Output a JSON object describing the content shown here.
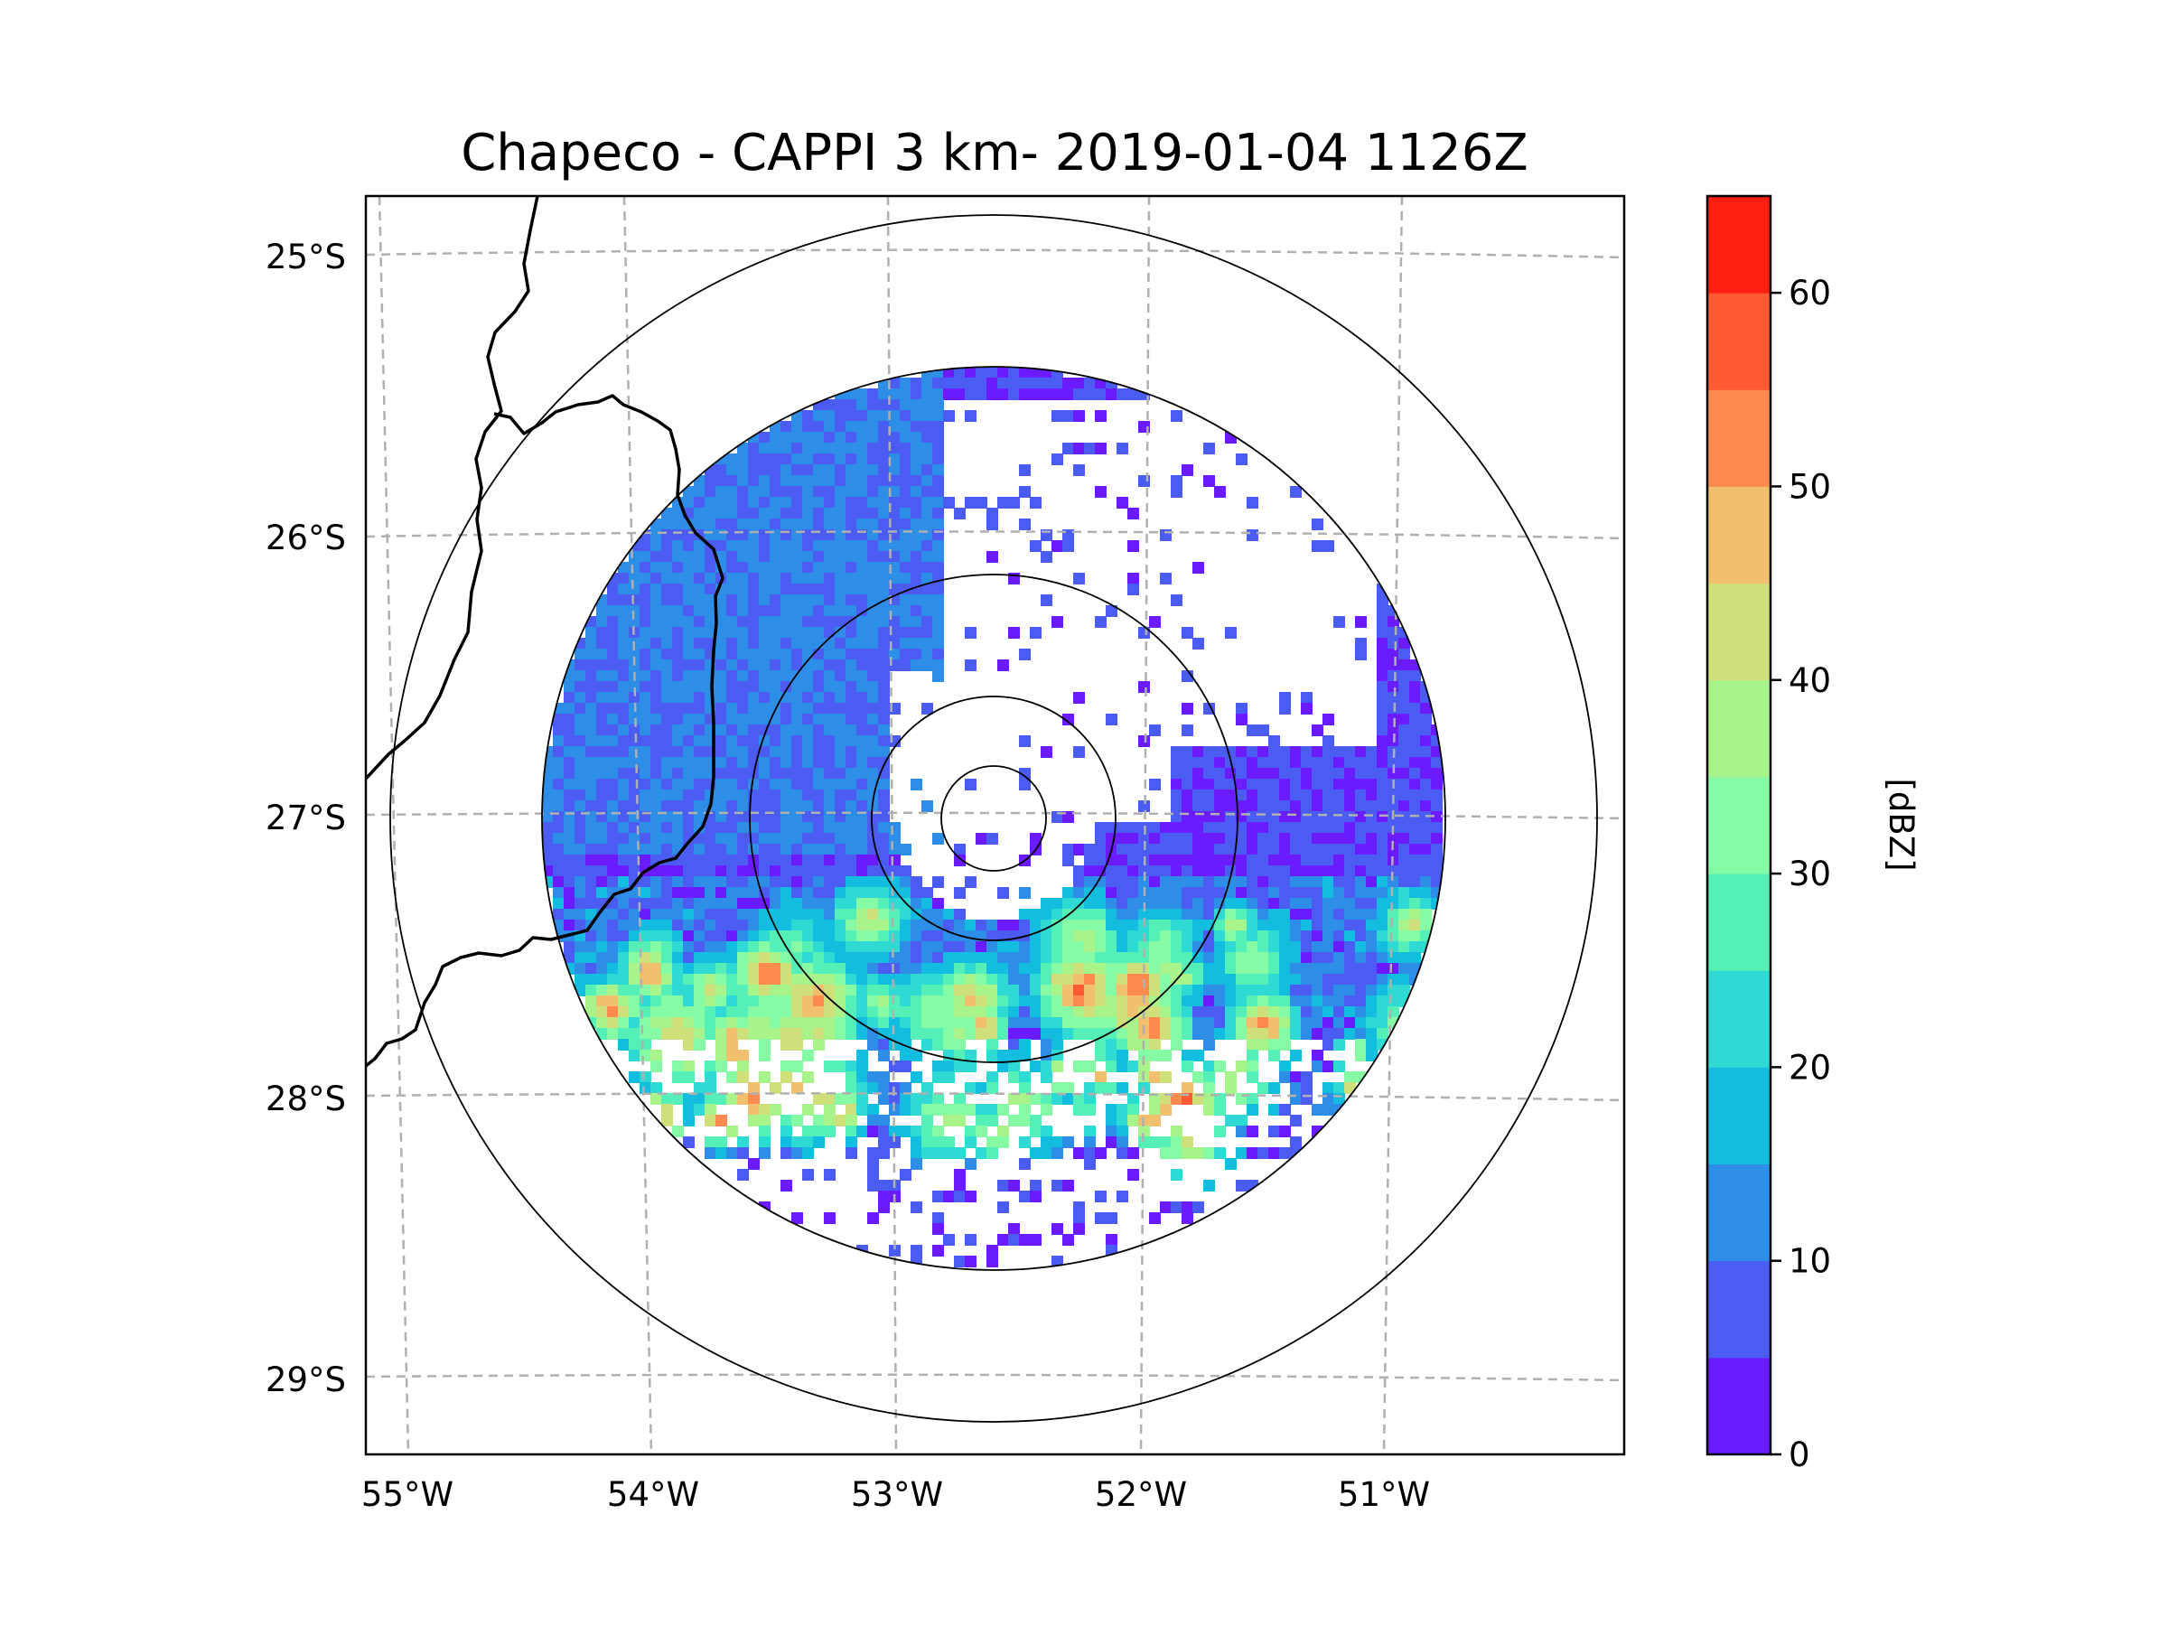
{
  "chart_data": {
    "type": "radar-map",
    "title": "Chapeco - CAPPI 3 km- 2019-01-04 1126Z",
    "station": "Chapeco",
    "product": "CAPPI 3 km",
    "datetime": "2019-01-04 1126Z",
    "map": {
      "lon_ticks": [
        "55°W",
        "54°W",
        "53°W",
        "52°W",
        "51°W"
      ],
      "lat_ticks": [
        "25°S",
        "26°S",
        "27°S",
        "28°S",
        "29°S"
      ],
      "gridlines": true,
      "range_rings_count": 5
    },
    "colorbar": {
      "label": "[dBZ]",
      "vmin": 0,
      "vmax": 65,
      "step": 5,
      "ticks": [
        "0",
        "10",
        "20",
        "30",
        "40",
        "50",
        "60"
      ],
      "colors": [
        "#6a1bff",
        "#4a5cf2",
        "#2e8de6",
        "#12bde0",
        "#2fd9d4",
        "#55f0b8",
        "#85fba6",
        "#a8f48b",
        "#cfe07a",
        "#f1c06e",
        "#ff8c4e",
        "#ff5a33",
        "#ff1e12"
      ]
    },
    "echo_summary": {
      "background_dbz_range": [
        0,
        15
      ],
      "southern_band_dbz_range": [
        15,
        50
      ]
    }
  }
}
